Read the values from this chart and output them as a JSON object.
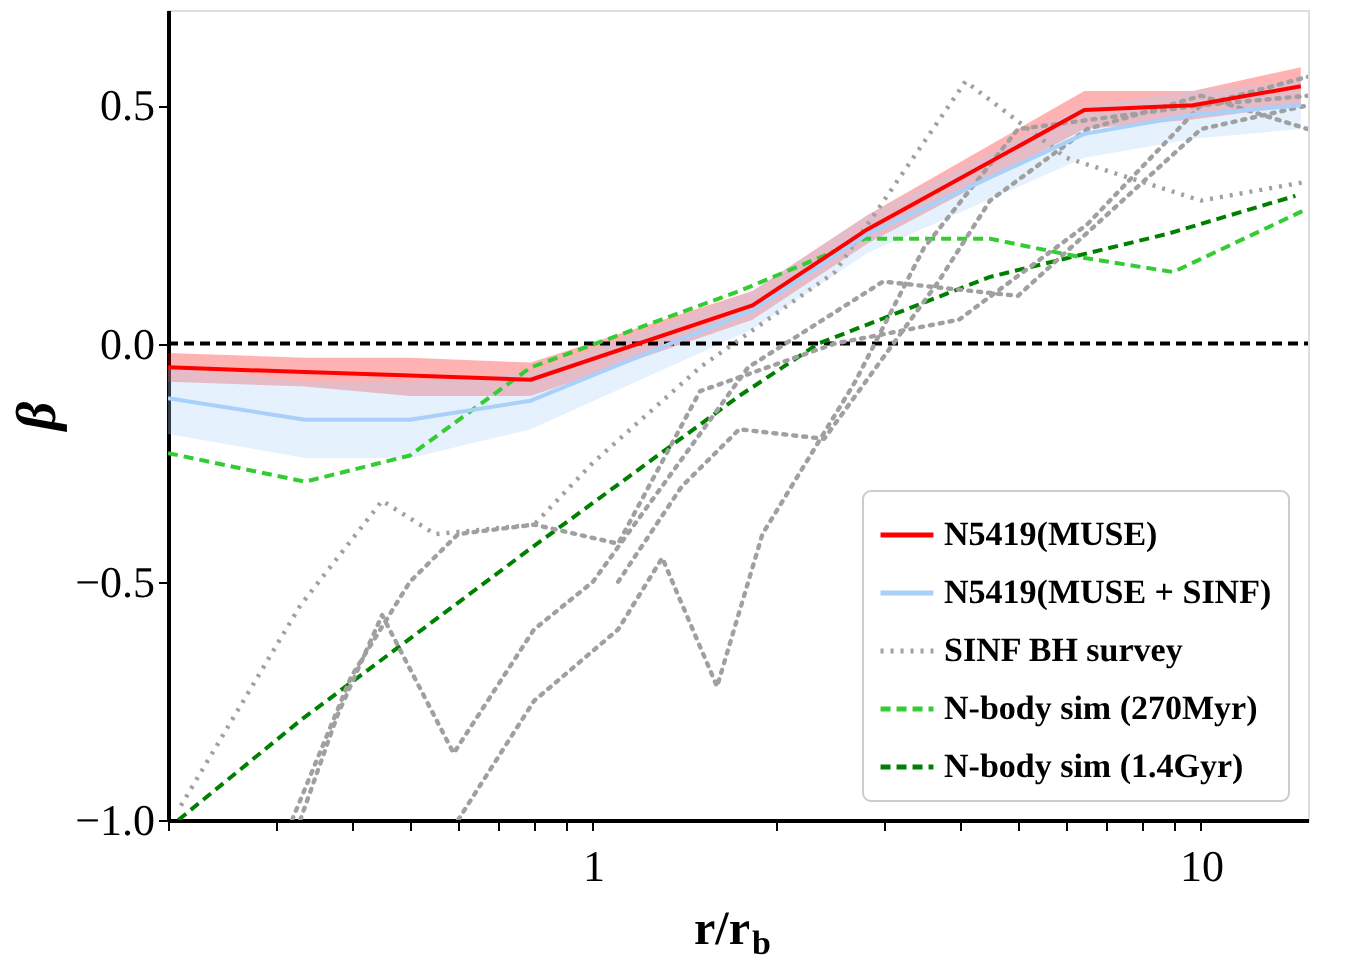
{
  "chart_data": {
    "type": "line",
    "xlabel": "r/r$_{b}$",
    "ylabel": "β",
    "log": "x",
    "grid": false,
    "legend": "bottom right",
    "marker": "none",
    "xlim": [
      0.2,
      15
    ],
    "ylim": [
      -1.0,
      0.7
    ],
    "xticks": [
      {
        "value": 0.2,
        "label": null
      },
      {
        "value": 0.3,
        "label": null
      },
      {
        "value": 0.4,
        "label": null
      },
      {
        "value": 0.5,
        "label": null
      },
      {
        "value": 0.6,
        "label": null
      },
      {
        "value": 0.7,
        "label": null
      },
      {
        "value": 0.8,
        "label": null
      },
      {
        "value": 0.9,
        "label": null
      },
      {
        "value": 1,
        "label": "1"
      },
      {
        "value": 2,
        "label": null
      },
      {
        "value": 3,
        "label": null
      },
      {
        "value": 4,
        "label": null
      },
      {
        "value": 5,
        "label": null
      },
      {
        "value": 6,
        "label": null
      },
      {
        "value": 7,
        "label": null
      },
      {
        "value": 8,
        "label": null
      },
      {
        "value": 9,
        "label": null
      },
      {
        "value": 10,
        "label": "10"
      }
    ],
    "yticks": [
      {
        "value": -1.0,
        "label": "−1.0"
      },
      {
        "value": -0.5,
        "label": "−0.5"
      },
      {
        "value": 0.0,
        "label": "0.0"
      },
      {
        "value": 0.5,
        "label": "0.5"
      }
    ],
    "ref_lines": [
      {
        "axis": "y",
        "value": 0,
        "color": "#000000",
        "line_style": "dashed"
      }
    ],
    "series": [
      {
        "name": "N5419(MUSE)",
        "color": "#ff0000",
        "line_style": "solid",
        "x": [
          0.2,
          0.336,
          0.5,
          0.79,
          1.83,
          2.83,
          6.43,
          9.7,
          14.6
        ],
        "values": [
          -0.05,
          -0.06,
          -0.067,
          -0.076,
          0.08,
          0.24,
          0.49,
          0.5,
          0.54
        ],
        "lower": [
          -0.08,
          -0.09,
          -0.11,
          -0.11,
          0.05,
          0.21,
          0.45,
          0.47,
          0.5
        ],
        "upper": [
          -0.02,
          -0.03,
          -0.03,
          -0.04,
          0.11,
          0.27,
          0.53,
          0.53,
          0.58
        ]
      },
      {
        "name": "N5419(MUSE + SINF)",
        "color": "#a8d0f8",
        "line_style": "solid",
        "x": [
          0.2,
          0.336,
          0.5,
          0.79,
          1.83,
          2.83,
          6.43,
          9.7,
          14.6
        ],
        "values": [
          -0.115,
          -0.16,
          -0.16,
          -0.12,
          0.07,
          0.23,
          0.44,
          0.48,
          0.5
        ],
        "lower": [
          -0.19,
          -0.24,
          -0.24,
          -0.18,
          0.03,
          0.19,
          0.39,
          0.43,
          0.45
        ],
        "upper": [
          -0.05,
          -0.08,
          -0.08,
          -0.06,
          0.11,
          0.27,
          0.5,
          0.53,
          0.55
        ]
      },
      {
        "name": "SINF BH survey",
        "color": "#a0a0a0",
        "line_style": "dotted",
        "x": [
          0.21,
          0.33,
          0.45,
          0.55,
          0.8,
          1.0,
          1.5,
          2.5,
          4.1,
          6.0,
          10,
          15
        ],
        "values": [
          -0.97,
          -0.55,
          -0.33,
          -0.4,
          -0.38,
          -0.25,
          -0.05,
          0.15,
          0.55,
          0.39,
          0.3,
          0.34
        ]
      },
      {
        "color": "#a0a0a0",
        "line_style": "dotted",
        "x": [
          0.33,
          0.38,
          0.45,
          0.59,
          0.8,
          1.0,
          1.8,
          3.0,
          5.0,
          10,
          15
        ],
        "values": [
          -1.0,
          -0.78,
          -0.57,
          -0.86,
          -0.6,
          -0.5,
          -0.05,
          0.13,
          0.1,
          0.45,
          0.5
        ]
      },
      {
        "color": "#a0a0a0",
        "line_style": "dotted",
        "x": [
          0.32,
          0.4,
          0.5,
          0.6,
          0.8,
          1.1,
          1.5,
          2.5,
          4.0,
          6.5,
          10,
          15
        ],
        "values": [
          -1.0,
          -0.7,
          -0.5,
          -0.4,
          -0.38,
          -0.42,
          -0.1,
          0.0,
          0.05,
          0.25,
          0.5,
          0.52
        ]
      },
      {
        "color": "#a0a0a0",
        "line_style": "dotted",
        "x": [
          0.6,
          0.8,
          1.1,
          1.3,
          1.6,
          1.9,
          2.7,
          3.5,
          5.0,
          10,
          15
        ],
        "values": [
          -1.0,
          -0.75,
          -0.6,
          -0.45,
          -0.72,
          -0.4,
          -0.08,
          0.2,
          0.45,
          0.5,
          0.56
        ]
      },
      {
        "color": "#a0a0a0",
        "line_style": "dotted",
        "x": [
          1.1,
          1.4,
          1.74,
          2.4,
          3.7,
          4.5,
          6.5,
          10,
          15
        ],
        "values": [
          -0.5,
          -0.3,
          -0.18,
          -0.2,
          0.13,
          0.3,
          0.45,
          0.52,
          0.45
        ]
      },
      {
        "name": "N-body sim (270Myr)",
        "color": "#33cc33",
        "line_style": "dashed",
        "x": [
          0.2,
          0.336,
          0.5,
          0.79,
          1.74,
          2.8,
          4.5,
          6.4,
          9.0,
          14.8
        ],
        "values": [
          -0.23,
          -0.29,
          -0.235,
          -0.05,
          0.11,
          0.22,
          0.22,
          0.18,
          0.15,
          0.28
        ]
      },
      {
        "name": "N-body sim (1.4Gyr)",
        "color": "#008000",
        "line_style": "dashed",
        "x": [
          0.208,
          0.331,
          0.79,
          1.74,
          2.35,
          4.5,
          8.8,
          14.3
        ],
        "values": [
          -1.0,
          -0.79,
          -0.43,
          -0.11,
          0.0,
          0.14,
          0.23,
          0.31
        ]
      }
    ]
  }
}
